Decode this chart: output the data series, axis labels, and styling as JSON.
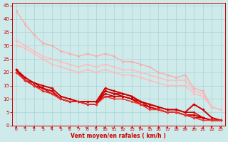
{
  "background_color": "#ceeaea",
  "grid_color": "#aad4d4",
  "xlabel": "Vent moyen/en rafales ( km/h )",
  "xlabel_color": "#cc0000",
  "tick_color": "#cc0000",
  "xlim": [
    -0.5,
    23.5
  ],
  "ylim": [
    0,
    46
  ],
  "yticks": [
    0,
    5,
    10,
    15,
    20,
    25,
    30,
    35,
    40,
    45
  ],
  "xticks": [
    0,
    1,
    2,
    3,
    4,
    5,
    6,
    7,
    8,
    9,
    10,
    11,
    12,
    13,
    14,
    15,
    16,
    17,
    18,
    19,
    20,
    21,
    22,
    23
  ],
  "lines": [
    {
      "x": [
        0,
        1,
        2,
        3,
        4,
        5,
        6,
        7,
        8,
        9,
        10,
        11,
        12,
        13,
        14,
        15,
        16,
        17,
        18,
        19,
        20,
        21,
        22,
        23
      ],
      "y": [
        43,
        38,
        34,
        31,
        30,
        28,
        27,
        26,
        27,
        26,
        27,
        26,
        24,
        24,
        23,
        22,
        20,
        19,
        18,
        19,
        14,
        13,
        7,
        6
      ],
      "color": "#ffaaaa",
      "marker": "o",
      "markersize": 2.0,
      "linewidth": 1.0
    },
    {
      "x": [
        0,
        1,
        2,
        3,
        4,
        5,
        6,
        7,
        8,
        9,
        10,
        11,
        12,
        13,
        14,
        15,
        16,
        17,
        18,
        19,
        20,
        21,
        22,
        23
      ],
      "y": [
        32,
        30,
        28,
        26,
        25,
        24,
        23,
        22,
        23,
        22,
        23,
        22,
        21,
        21,
        20,
        19,
        18,
        17,
        17,
        17,
        13,
        12,
        7,
        6
      ],
      "color": "#ffbbbb",
      "marker": "o",
      "markersize": 2.0,
      "linewidth": 1.0
    },
    {
      "x": [
        0,
        1,
        2,
        3,
        4,
        5,
        6,
        7,
        8,
        9,
        10,
        11,
        12,
        13,
        14,
        15,
        16,
        17,
        18,
        19,
        20,
        21,
        22,
        23
      ],
      "y": [
        30,
        29,
        27,
        25,
        23,
        22,
        21,
        20,
        21,
        20,
        21,
        20,
        19,
        19,
        18,
        17,
        16,
        15,
        15,
        15,
        12,
        11,
        7,
        6
      ],
      "color": "#ffbbbb",
      "marker": "o",
      "markersize": 2.0,
      "linewidth": 1.0
    },
    {
      "x": [
        0,
        1,
        2,
        3,
        4,
        5,
        6,
        7,
        8,
        9,
        10,
        11,
        12,
        13,
        14,
        15,
        16,
        17,
        18,
        19,
        20,
        21,
        22,
        23
      ],
      "y": [
        21,
        18,
        16,
        15,
        14,
        11,
        10,
        9,
        9,
        9,
        14,
        13,
        12,
        11,
        9,
        8,
        7,
        6,
        6,
        5,
        8,
        6,
        3,
        2
      ],
      "color": "#cc0000",
      "marker": "D",
      "markersize": 1.8,
      "linewidth": 1.4
    },
    {
      "x": [
        0,
        1,
        2,
        3,
        4,
        5,
        6,
        7,
        8,
        9,
        10,
        11,
        12,
        13,
        14,
        15,
        16,
        17,
        18,
        19,
        20,
        21,
        22,
        23
      ],
      "y": [
        21,
        17,
        16,
        14,
        13,
        10,
        9,
        9,
        8,
        8,
        13,
        12,
        12,
        11,
        9,
        8,
        7,
        6,
        6,
        5,
        5,
        3,
        2,
        2
      ],
      "color": "#cc0000",
      "marker": "D",
      "markersize": 1.6,
      "linewidth": 1.1
    },
    {
      "x": [
        0,
        1,
        2,
        3,
        4,
        5,
        6,
        7,
        8,
        9,
        10,
        11,
        12,
        13,
        14,
        15,
        16,
        17,
        18,
        19,
        20,
        21,
        22,
        23
      ],
      "y": [
        21,
        17,
        15,
        14,
        13,
        10,
        9,
        9,
        9,
        9,
        13,
        12,
        11,
        10,
        9,
        7,
        6,
        5,
        5,
        4,
        4,
        3,
        2,
        2
      ],
      "color": "#cc0000",
      "marker": "D",
      "markersize": 1.6,
      "linewidth": 1.1
    },
    {
      "x": [
        0,
        1,
        2,
        3,
        4,
        5,
        6,
        7,
        8,
        9,
        10,
        11,
        12,
        13,
        14,
        15,
        16,
        17,
        18,
        19,
        20,
        21,
        22,
        23
      ],
      "y": [
        20,
        17,
        15,
        14,
        12,
        10,
        9,
        9,
        8,
        8,
        12,
        11,
        11,
        10,
        8,
        7,
        6,
        5,
        5,
        4,
        4,
        3,
        2,
        2
      ],
      "color": "#cc0000",
      "marker": "D",
      "markersize": 1.6,
      "linewidth": 1.1
    },
    {
      "x": [
        0,
        1,
        2,
        3,
        4,
        5,
        6,
        7,
        8,
        9,
        10,
        11,
        12,
        13,
        14,
        15,
        16,
        17,
        18,
        19,
        20,
        21,
        22,
        23
      ],
      "y": [
        20,
        17,
        15,
        13,
        12,
        10,
        9,
        9,
        8,
        8,
        11,
        11,
        11,
        10,
        8,
        7,
        6,
        5,
        5,
        4,
        3,
        3,
        2,
        2
      ],
      "color": "#cc0000",
      "marker": "D",
      "markersize": 1.6,
      "linewidth": 1.1
    },
    {
      "x": [
        0,
        1,
        2,
        3,
        4,
        5,
        6,
        7,
        8,
        9,
        10,
        11,
        12,
        13,
        14,
        15,
        16,
        17,
        18,
        19,
        20,
        21,
        22,
        23
      ],
      "y": [
        20,
        17,
        15,
        13,
        12,
        10,
        9,
        9,
        8,
        8,
        11,
        10,
        10,
        9,
        8,
        6,
        6,
        5,
        5,
        4,
        3,
        2,
        2,
        2
      ],
      "color": "#ee3333",
      "marker": "D",
      "markersize": 1.6,
      "linewidth": 1.1
    }
  ],
  "wind_arrow_color": "#cc0000",
  "wind_arrow_angles": [
    0,
    0,
    0,
    0,
    0,
    10,
    20,
    30,
    40,
    20,
    30,
    50,
    40,
    60,
    40,
    70,
    60,
    70,
    60,
    80,
    90,
    90,
    270,
    270
  ]
}
